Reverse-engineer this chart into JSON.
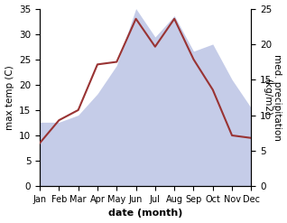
{
  "months": [
    "Jan",
    "Feb",
    "Mar",
    "Apr",
    "May",
    "Jun",
    "Jul",
    "Aug",
    "Sep",
    "Oct",
    "Nov",
    "Dec"
  ],
  "x": [
    0,
    1,
    2,
    3,
    4,
    5,
    6,
    7,
    8,
    9,
    10,
    11
  ],
  "temperature": [
    8.5,
    13.0,
    15.0,
    24.0,
    24.5,
    33.0,
    27.5,
    33.0,
    25.0,
    19.0,
    10.0,
    9.5
  ],
  "precipitation": [
    9,
    9,
    10,
    13,
    17,
    25,
    21,
    24,
    19,
    20,
    15,
    11
  ],
  "temp_color": "#993333",
  "precip_fill_color": "#c5cce8",
  "bg_color": "#ffffff",
  "ylabel_left": "max temp (C)",
  "ylabel_right": "med. precipitation\n(kg/m2)",
  "xlabel": "date (month)",
  "ylim_left": [
    0,
    35
  ],
  "ylim_right": [
    0,
    25
  ],
  "label_fontsize": 8,
  "tick_fontsize": 7.5
}
